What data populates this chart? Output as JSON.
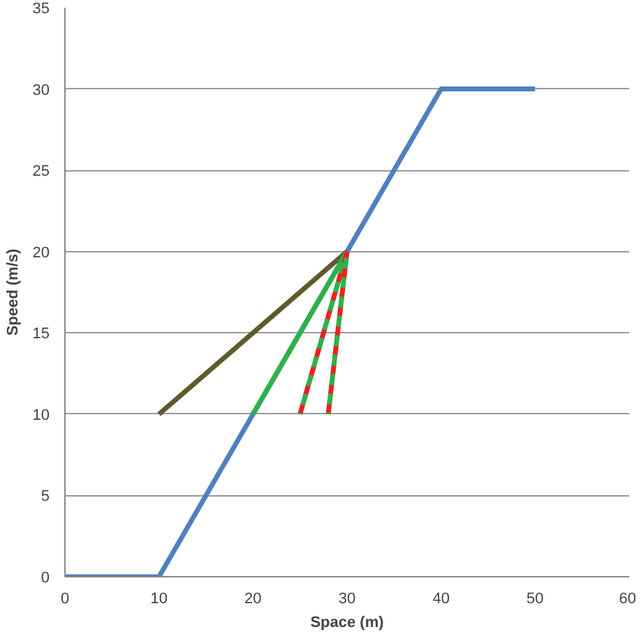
{
  "chart_data": {
    "type": "line",
    "xlabel": "Space (m)",
    "ylabel": "Speed (m/s)",
    "xlim": [
      0,
      60
    ],
    "xticks": [
      0,
      10,
      20,
      30,
      40,
      50,
      60
    ],
    "ylim": [
      0,
      35
    ],
    "yticks": [
      0,
      5,
      10,
      15,
      20,
      25,
      30,
      35
    ],
    "grid": "y",
    "series": [
      {
        "color": "#4f81bd",
        "x": [
          0,
          10,
          40,
          50
        ],
        "values": [
          0,
          0,
          30,
          30
        ]
      },
      {
        "color": "#5e5a2c",
        "x": [
          10,
          30
        ],
        "values": [
          10,
          20
        ]
      },
      {
        "color": "#2fb04a",
        "x": [
          20,
          30
        ],
        "values": [
          10,
          20
        ]
      },
      {
        "color": "#ee2020",
        "x": [
          25,
          30
        ],
        "values": [
          10,
          20
        ],
        "line_style": "dashed"
      },
      {
        "color": "#2fb04a",
        "x": [
          25,
          30
        ],
        "values": [
          10,
          20
        ],
        "line_style": "dashed"
      },
      {
        "color": "#ee2020",
        "x": [
          28,
          30
        ],
        "values": [
          10,
          20
        ],
        "line_style": "dashed"
      },
      {
        "color": "#2fb04a",
        "x": [
          28,
          30
        ],
        "values": [
          10,
          20
        ],
        "line_style": "dashed"
      }
    ]
  }
}
